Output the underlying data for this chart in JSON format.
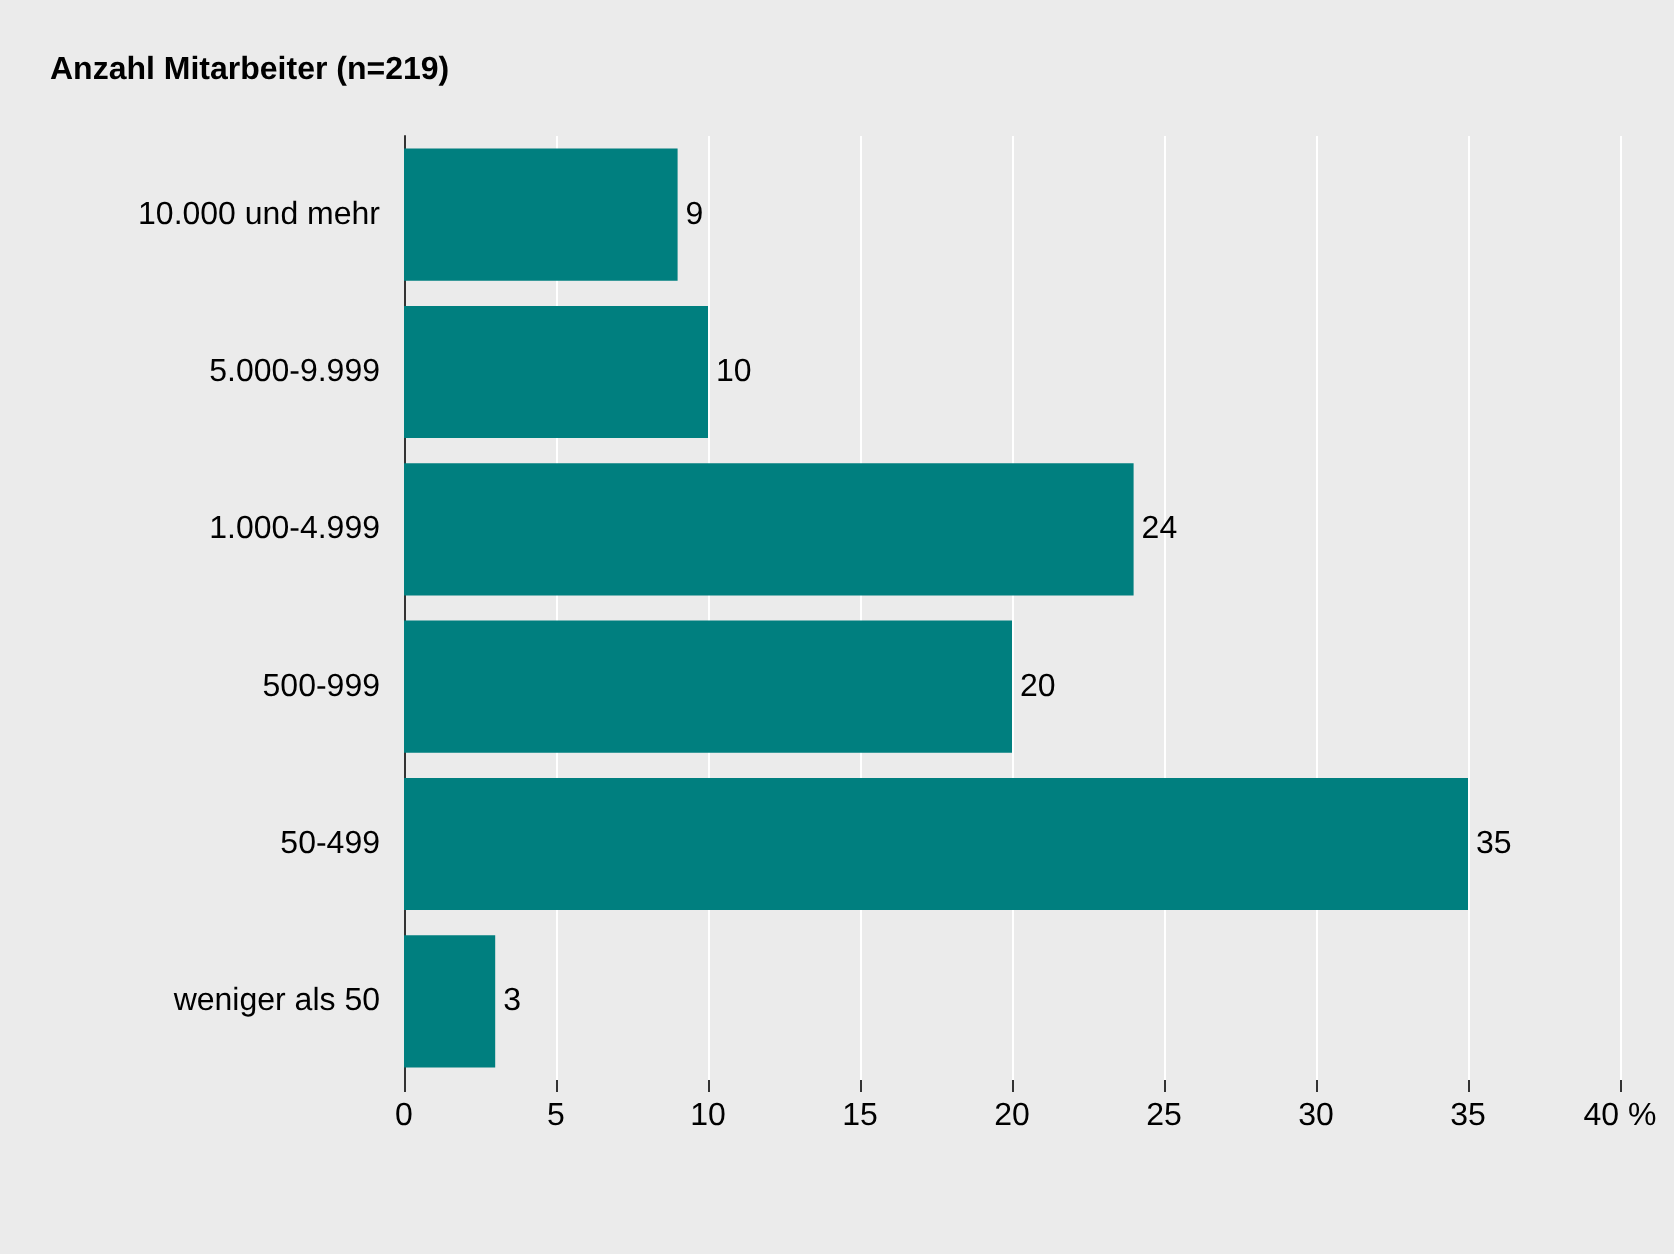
{
  "chart_data": {
    "type": "bar",
    "orientation": "horizontal",
    "title": "Anzahl Mitarbeiter (n=219)",
    "categories": [
      "10.000 und mehr",
      "5.000-9.999",
      "1.000-4.999",
      "500-999",
      "50-499",
      "weniger als 50"
    ],
    "values": [
      9,
      10,
      24,
      20,
      35,
      3
    ],
    "color": "#007f7f",
    "xlim": [
      0,
      40
    ],
    "xticks": [
      0,
      5,
      10,
      15,
      20,
      25,
      30,
      35,
      {
        "value": 40,
        "label": "40 %"
      }
    ],
    "grid": "x",
    "data_labels": true
  }
}
